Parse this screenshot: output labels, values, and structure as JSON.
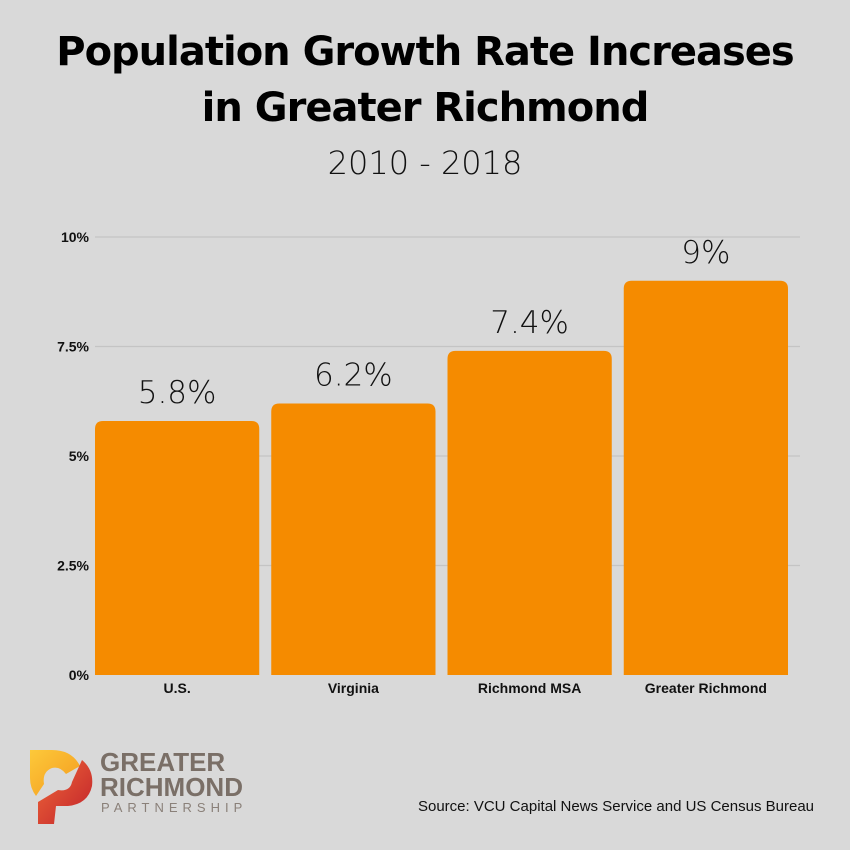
{
  "chart_data": {
    "type": "bar",
    "title": "Population Growth Rate Increases in Greater Richmond",
    "title_lines": [
      "Population Growth Rate Increases",
      "in Greater Richmond"
    ],
    "subtitle": "2010 - 2018",
    "categories": [
      "U.S.",
      "Virginia",
      "Richmond MSA",
      "Greater Richmond"
    ],
    "values": [
      5.8,
      6.2,
      7.4,
      9
    ],
    "data_labels": [
      "5.8%",
      "6.2%",
      "7.4%",
      "9%"
    ],
    "ylim": [
      0,
      10
    ],
    "yticks": [
      0,
      2.5,
      5,
      7.5,
      10
    ],
    "ytick_labels": [
      "0%",
      "2.5%",
      "5%",
      "7.5%",
      "10%"
    ],
    "grid": true,
    "bar_color": "#f58b00",
    "xlabel": "",
    "ylabel": ""
  },
  "source": "Source: VCU Capital News Service and US Census Bureau",
  "logo": {
    "line1": "GREATER",
    "line2": "RICHMOND",
    "line3": "PARTNERSHIP"
  }
}
